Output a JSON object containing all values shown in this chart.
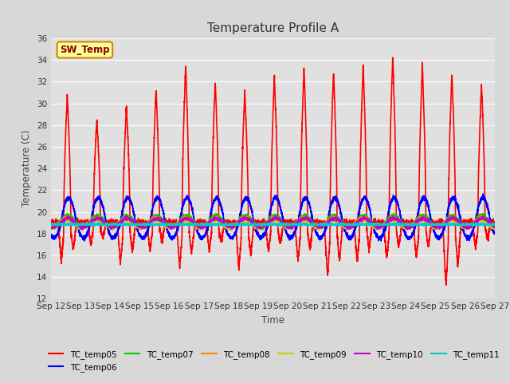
{
  "title": "Temperature Profile A",
  "xlabel": "Time",
  "ylabel": "Temperature (C)",
  "ylim": [
    12,
    36
  ],
  "yticks": [
    12,
    14,
    16,
    18,
    20,
    22,
    24,
    26,
    28,
    30,
    32,
    34,
    36
  ],
  "xtick_labels": [
    "Sep 12",
    "Sep 13",
    "Sep 14",
    "Sep 15",
    "Sep 16",
    "Sep 17",
    "Sep 18",
    "Sep 19",
    "Sep 20",
    "Sep 21",
    "Sep 22",
    "Sep 23",
    "Sep 24",
    "Sep 25",
    "Sep 26",
    "Sep 27"
  ],
  "background_color": "#d8d8d8",
  "plot_bg_color": "#e0e0e0",
  "grid_color": "#f8f8f8",
  "series": {
    "TC_temp05": {
      "color": "#ff0000",
      "lw": 1.2
    },
    "TC_temp06": {
      "color": "#0000ff",
      "lw": 1.2
    },
    "TC_temp07": {
      "color": "#00cc00",
      "lw": 1.2
    },
    "TC_temp08": {
      "color": "#ff8800",
      "lw": 1.2
    },
    "TC_temp09": {
      "color": "#cccc00",
      "lw": 1.2
    },
    "TC_temp10": {
      "color": "#cc00cc",
      "lw": 1.2
    },
    "TC_temp11": {
      "color": "#00cccc",
      "lw": 1.2
    }
  },
  "annotation_text": "SW_Temp",
  "annotation_color": "#880000",
  "annotation_bg": "#ffff99",
  "annotation_border": "#cc8800",
  "n_days": 15,
  "peak_heights": [
    30.7,
    28.5,
    29.7,
    31.3,
    33.5,
    32.0,
    31.0,
    32.5,
    33.2,
    32.9,
    33.5,
    34.3,
    33.5,
    32.7,
    31.8
  ],
  "valley_depths": [
    15.5,
    17.0,
    15.3,
    16.5,
    15.0,
    16.5,
    14.8,
    16.3,
    15.5,
    14.0,
    15.5,
    15.8,
    15.8,
    13.2,
    16.8
  ]
}
